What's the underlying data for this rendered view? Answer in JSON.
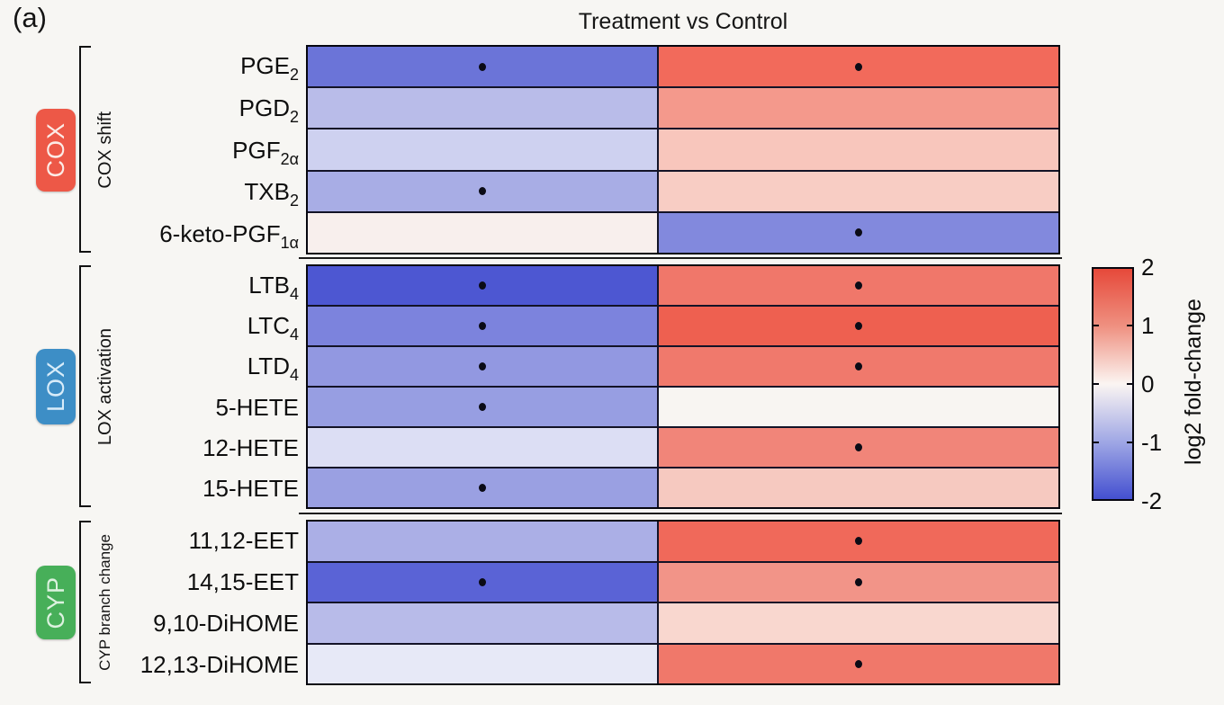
{
  "panel_label": "(a)",
  "chart_data": {
    "type": "heatmap",
    "title": "Treatment vs Control",
    "columns": [
      "left",
      "right"
    ],
    "value_range": [
      -2,
      2
    ],
    "grid": true,
    "colorbar": {
      "label": "log2 fold-change",
      "ticks": [
        "2",
        "1",
        "0",
        "-1",
        "-2"
      ],
      "top_color": "#e6493a",
      "mid_color": "#fbf5f2",
      "bottom_color": "#4450d0"
    },
    "significance_marker": "dot",
    "groups": [
      {
        "name": "COX",
        "sublabel": "COX shift",
        "badge_color": "#ed5847",
        "badge_text_color": "#fcebe6",
        "rows": [
          {
            "label_main": "PGE",
            "label_sub": "2",
            "values": [
              -1.4,
              1.5
            ],
            "significant": [
              true,
              true
            ],
            "colors": [
              "#6b74d8",
              "#f26a5b"
            ]
          },
          {
            "label_main": "PGD",
            "label_sub": "2",
            "values": [
              -0.65,
              0.95
            ],
            "significant": [
              false,
              false
            ],
            "colors": [
              "#b9bce9",
              "#f4998c"
            ]
          },
          {
            "label_main": "PGF",
            "label_sub": "2α",
            "values": [
              -0.45,
              0.55
            ],
            "significant": [
              false,
              false
            ],
            "colors": [
              "#ced1f0",
              "#f8c6bc"
            ]
          },
          {
            "label_main": "TXB",
            "label_sub": "2",
            "values": [
              -0.8,
              0.5
            ],
            "significant": [
              true,
              false
            ],
            "colors": [
              "#a8ade5",
              "#f8cdc4"
            ]
          },
          {
            "label_main": "6-keto-PGF",
            "label_sub": "1α",
            "values": [
              0.1,
              -1.15
            ],
            "significant": [
              false,
              true
            ],
            "colors": [
              "#f8efed",
              "#8289dd"
            ]
          }
        ]
      },
      {
        "name": "LOX",
        "sublabel": "LOX activation",
        "badge_color": "#3d8ec6",
        "badge_text_color": "#d8ecf9",
        "rows": [
          {
            "label_main": "LTB",
            "label_sub": "4",
            "values": [
              -1.75,
              1.3
            ],
            "significant": [
              true,
              true
            ],
            "colors": [
              "#4d57d2",
              "#f0776a"
            ]
          },
          {
            "label_main": "LTC",
            "label_sub": "4",
            "values": [
              -1.25,
              1.55
            ],
            "significant": [
              true,
              true
            ],
            "colors": [
              "#7c83dd",
              "#ee6050"
            ]
          },
          {
            "label_main": "LTD",
            "label_sub": "4",
            "values": [
              -1.0,
              1.3
            ],
            "significant": [
              true,
              true
            ],
            "colors": [
              "#9298e1",
              "#f0796c"
            ]
          },
          {
            "label_main": "5-HETE",
            "label_sub": "",
            "values": [
              -0.95,
              0.05
            ],
            "significant": [
              true,
              false
            ],
            "colors": [
              "#979ee2",
              "#f8f5f2"
            ]
          },
          {
            "label_main": "12-HETE",
            "label_sub": "",
            "values": [
              -0.35,
              1.15
            ],
            "significant": [
              false,
              true
            ],
            "colors": [
              "#dcdef4",
              "#f18579"
            ]
          },
          {
            "label_main": "15-HETE",
            "label_sub": "",
            "values": [
              -0.9,
              0.55
            ],
            "significant": [
              true,
              false
            ],
            "colors": [
              "#9aa0e2",
              "#f6c9c0"
            ]
          }
        ]
      },
      {
        "name": "CYP",
        "sublabel": "CYP branch change",
        "badge_color": "#47af59",
        "badge_text_color": "#ddf2e0",
        "rows": [
          {
            "label_main": "11,12-EET",
            "label_sub": "",
            "values": [
              -0.75,
              1.5
            ],
            "significant": [
              false,
              true
            ],
            "colors": [
              "#abafe6",
              "#f0695a"
            ]
          },
          {
            "label_main": "14,15-EET",
            "label_sub": "",
            "values": [
              -1.55,
              1.0
            ],
            "significant": [
              true,
              true
            ],
            "colors": [
              "#5a63d6",
              "#f29488"
            ]
          },
          {
            "label_main": "9,10-DiHOME",
            "label_sub": "",
            "values": [
              -0.65,
              0.4
            ],
            "significant": [
              false,
              false
            ],
            "colors": [
              "#b8bbe9",
              "#f9d7cf"
            ]
          },
          {
            "label_main": "12,13-DiHOME",
            "label_sub": "",
            "values": [
              -0.2,
              1.3
            ],
            "significant": [
              false,
              true
            ],
            "colors": [
              "#e7e9f7",
              "#f0786a"
            ]
          }
        ]
      }
    ]
  }
}
